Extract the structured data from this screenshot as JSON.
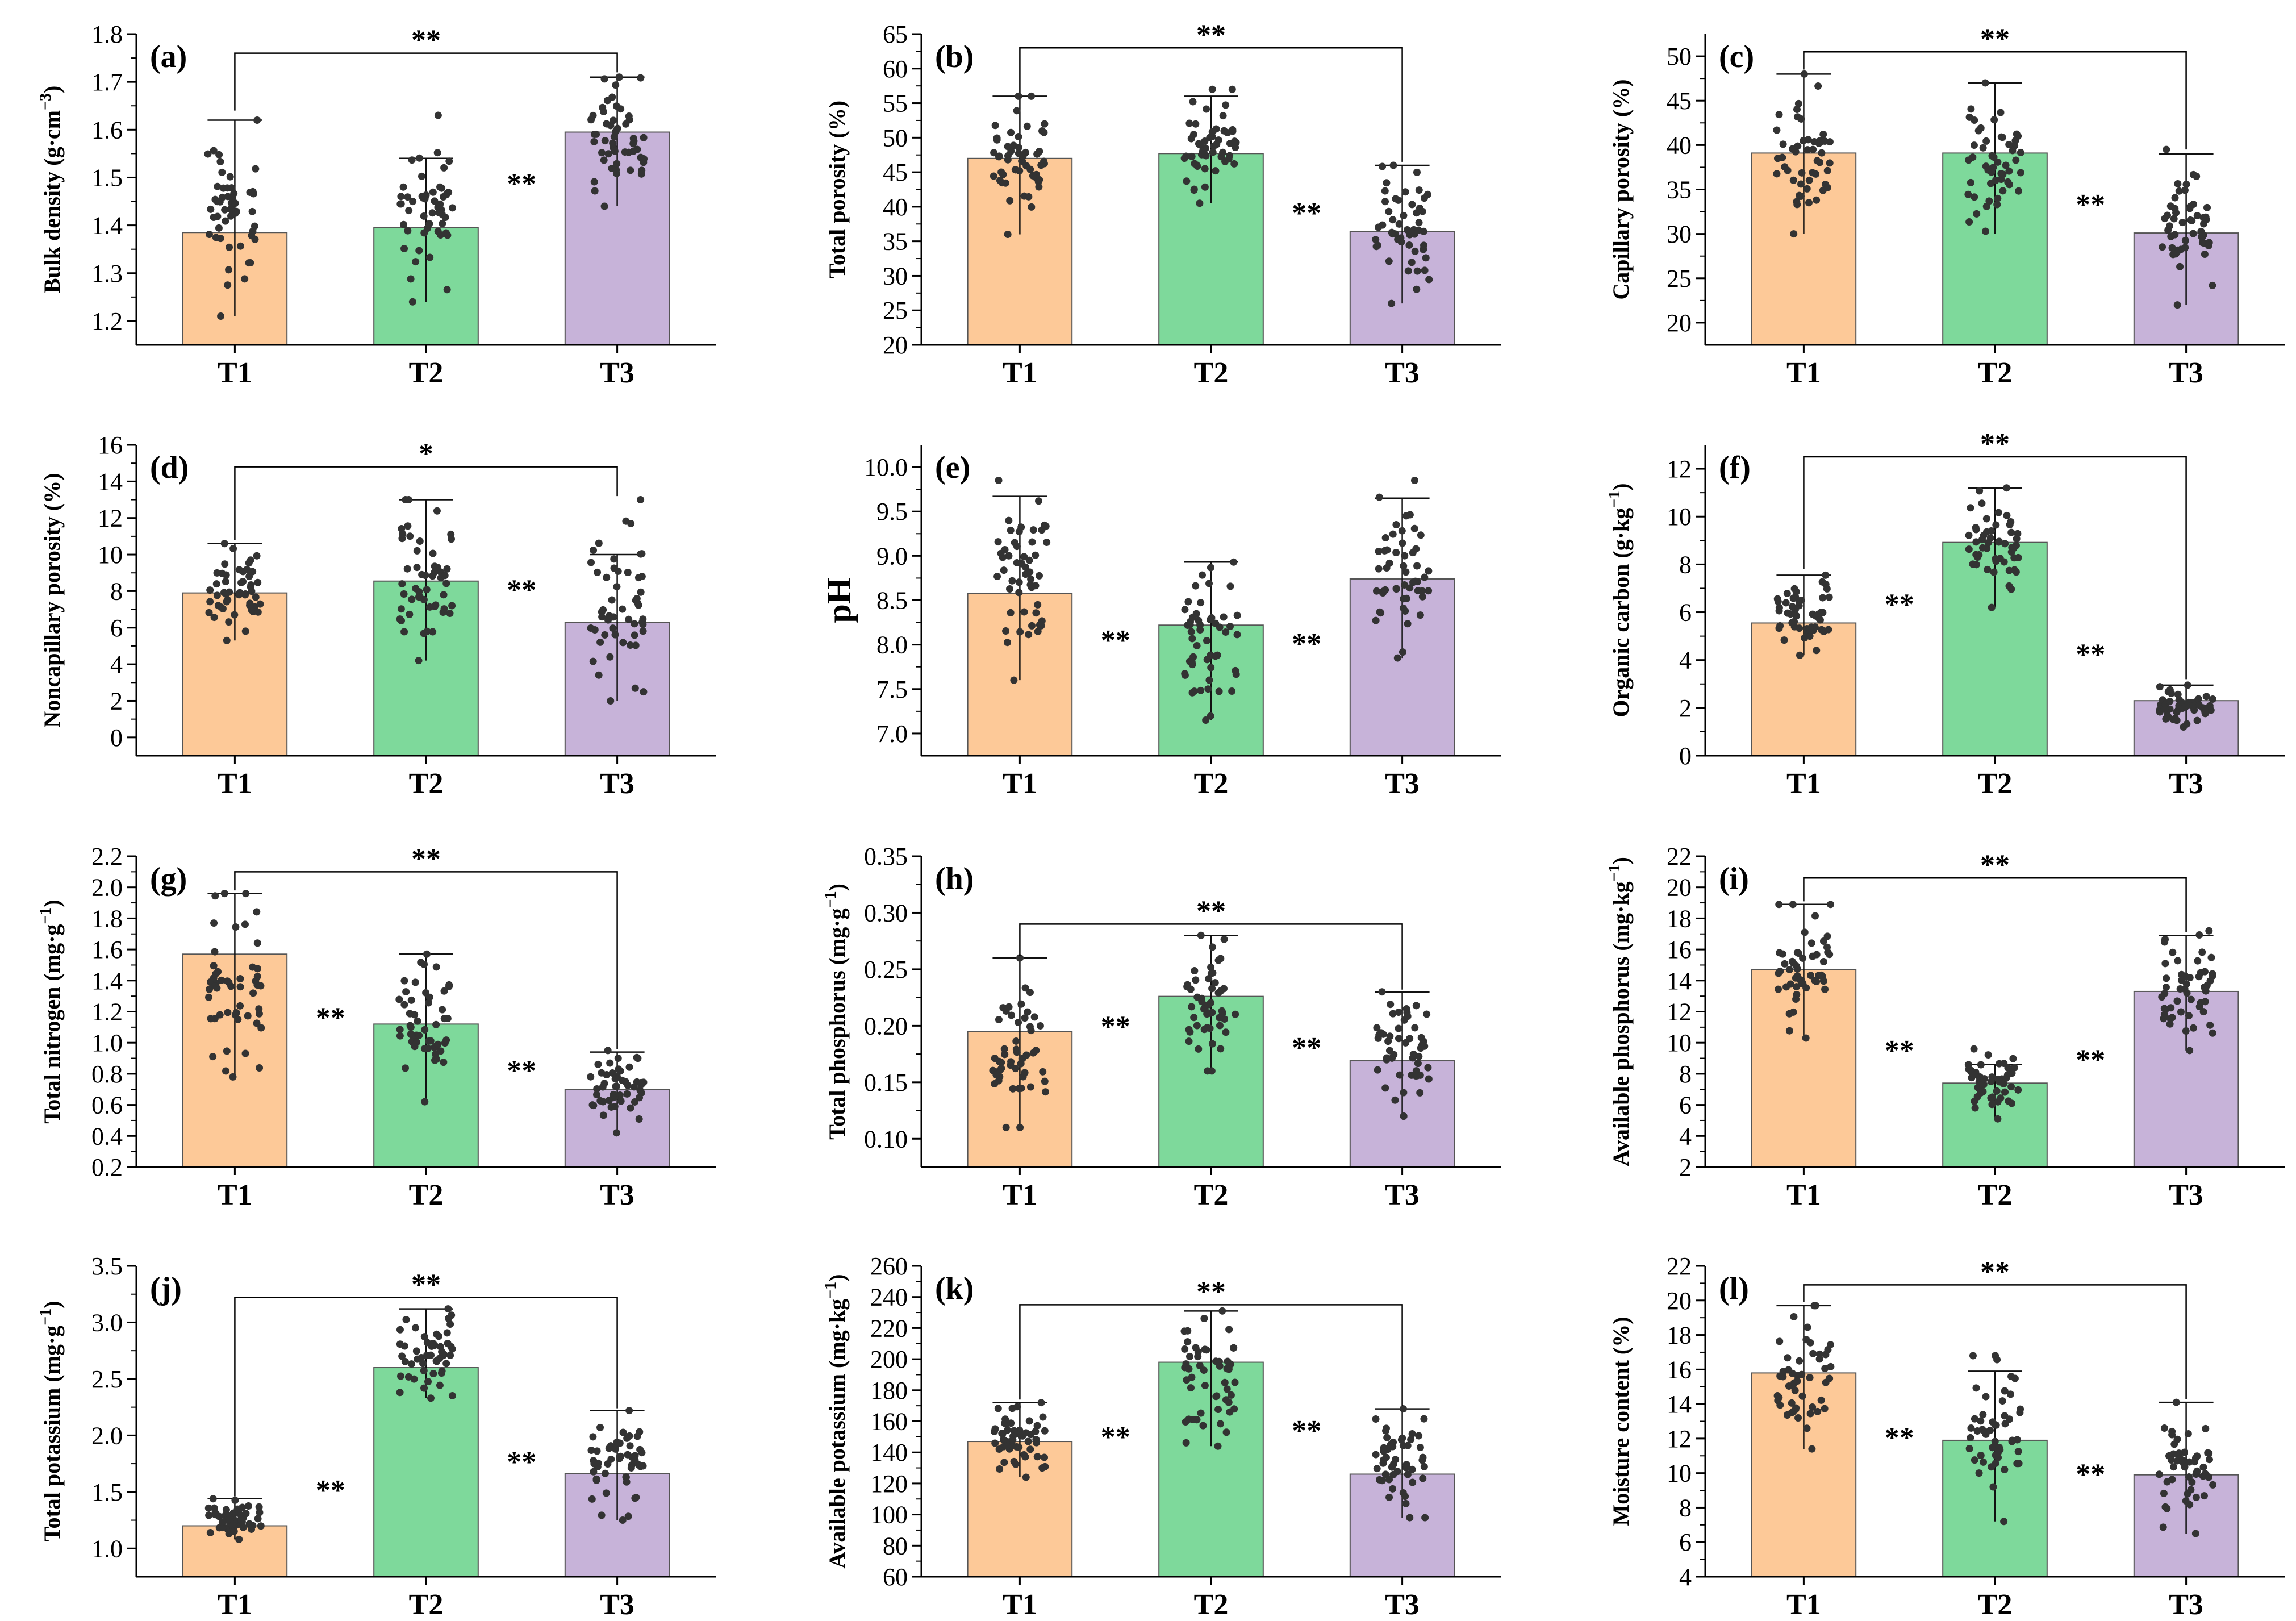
{
  "colors": {
    "T1": "#fdc998",
    "T2": "#7ed99b",
    "T3": "#c7b3d9",
    "point": "#333333",
    "axis": "#000000"
  },
  "categories": [
    "T1",
    "T2",
    "T3"
  ],
  "chart_data": [
    {
      "type": "bar",
      "panel": "(a)",
      "ylabel_parts": [
        "Bulk density (g·cm",
        "−3",
        ")"
      ],
      "categories": [
        "T1",
        "T2",
        "T3"
      ],
      "values": [
        1.385,
        1.395,
        1.595
      ],
      "err_low": [
        1.21,
        1.24,
        1.44
      ],
      "err_high": [
        1.62,
        1.54,
        1.71
      ],
      "pt_range": [
        [
          1.21,
          1.62
        ],
        [
          1.24,
          1.63
        ],
        [
          1.44,
          1.71
        ]
      ],
      "ylim": [
        1.15,
        1.8
      ],
      "yticks": [
        1.2,
        1.3,
        1.4,
        1.5,
        1.6,
        1.7,
        1.8
      ],
      "tick_format": "1",
      "bracket": {
        "from": 0,
        "to": 2,
        "y": 1.76,
        "drop": [
          1.64,
          1.72
        ],
        "label": "**"
      },
      "sig": [
        {
          "between": [
            1,
            2
          ],
          "y": 1.5,
          "label": "**"
        }
      ]
    },
    {
      "type": "bar",
      "panel": "(b)",
      "ylabel_parts": [
        "Total porosity (%)"
      ],
      "categories": [
        "T1",
        "T2",
        "T3"
      ],
      "values": [
        47,
        47.7,
        36.4
      ],
      "err_low": [
        36,
        40.5,
        26
      ],
      "err_high": [
        56,
        56,
        46
      ],
      "pt_range": [
        [
          36,
          56
        ],
        [
          40.5,
          57
        ],
        [
          26,
          46
        ]
      ],
      "ylim": [
        20,
        65
      ],
      "yticks": [
        20,
        25,
        30,
        35,
        40,
        45,
        50,
        55,
        60,
        65
      ],
      "tick_format": "0",
      "bracket": {
        "from": 0,
        "to": 2,
        "y": 63,
        "drop": [
          56.5,
          46.5
        ],
        "label": "**"
      },
      "sig": [
        {
          "between": [
            1,
            2
          ],
          "y": 40,
          "label": "**"
        }
      ]
    },
    {
      "type": "bar",
      "panel": "(c)",
      "ylabel_parts": [
        "Capillary porosity (%)"
      ],
      "categories": [
        "T1",
        "T2",
        "T3"
      ],
      "values": [
        39.1,
        39.1,
        30.1
      ],
      "err_low": [
        30,
        30,
        22
      ],
      "err_high": [
        48,
        47,
        39
      ],
      "pt_range": [
        [
          30,
          48
        ],
        [
          30.3,
          47
        ],
        [
          22,
          39.5
        ]
      ],
      "ylim": [
        17.5,
        52.5
      ],
      "yticks": [
        20,
        25,
        30,
        35,
        40,
        45,
        50
      ],
      "tick_format": "0",
      "bracket": {
        "from": 0,
        "to": 2,
        "y": 50.5,
        "drop": [
          48.5,
          39.5
        ],
        "label": "**"
      },
      "sig": [
        {
          "between": [
            1,
            2
          ],
          "y": 34,
          "label": "**"
        }
      ]
    },
    {
      "type": "bar",
      "panel": "(d)",
      "ylabel_parts": [
        "Noncapillary porosity (%)"
      ],
      "categories": [
        "T1",
        "T2",
        "T3"
      ],
      "values": [
        7.9,
        8.55,
        6.3
      ],
      "err_low": [
        5.3,
        4.2,
        2
      ],
      "err_high": [
        10.6,
        13,
        10
      ],
      "pt_range": [
        [
          5.3,
          10.6
        ],
        [
          4.2,
          13
        ],
        [
          2,
          13
        ]
      ],
      "ylim": [
        -1,
        16
      ],
      "yticks": [
        0,
        2,
        4,
        6,
        8,
        10,
        12,
        14,
        16
      ],
      "tick_format": "0",
      "bracket": {
        "from": 0,
        "to": 2,
        "y": 14.8,
        "drop": [
          10.8,
          13.2
        ],
        "label": "*"
      },
      "sig": [
        {
          "between": [
            1,
            2
          ],
          "y": 8.4,
          "label": "**"
        }
      ]
    },
    {
      "type": "bar",
      "panel": "(e)",
      "ylabel_parts": [
        "pH"
      ],
      "categories": [
        "T1",
        "T2",
        "T3"
      ],
      "values": [
        8.58,
        8.22,
        8.74
      ],
      "err_low": [
        7.6,
        7.15,
        7.85
      ],
      "err_high": [
        9.67,
        8.93,
        9.65
      ],
      "pt_range": [
        [
          7.6,
          9.85
        ],
        [
          7.15,
          8.93
        ],
        [
          7.85,
          9.85
        ]
      ],
      "ylim": [
        6.75,
        10.25
      ],
      "yticks": [
        7.0,
        7.5,
        8.0,
        8.5,
        9.0,
        9.5,
        10.0
      ],
      "tick_format": "1",
      "bracket": null,
      "sig": [
        {
          "between": [
            0,
            1
          ],
          "y": 8.12,
          "label": "**"
        },
        {
          "between": [
            1,
            2
          ],
          "y": 8.08,
          "label": "**"
        }
      ]
    },
    {
      "type": "bar",
      "panel": "(f)",
      "ylabel_parts": [
        "Organic carbon (g·kg",
        "−1",
        ")"
      ],
      "categories": [
        "T1",
        "T2",
        "T3"
      ],
      "values": [
        5.55,
        8.92,
        2.3
      ],
      "err_low": [
        4.2,
        6.2,
        1.2
      ],
      "err_high": [
        7.55,
        11.2,
        2.95
      ],
      "pt_range": [
        [
          4.2,
          7.55
        ],
        [
          6.2,
          11.2
        ],
        [
          1.2,
          2.95
        ]
      ],
      "ylim": [
        0,
        13
      ],
      "yticks": [
        0,
        2,
        4,
        6,
        8,
        10,
        12
      ],
      "tick_format": "0",
      "bracket": {
        "from": 0,
        "to": 2,
        "y": 12.5,
        "drop": [
          7.8,
          3.2
        ],
        "label": "**"
      },
      "sig": [
        {
          "between": [
            0,
            1
          ],
          "y": 6.6,
          "label": "**"
        },
        {
          "between": [
            1,
            2
          ],
          "y": 4.5,
          "label": "**"
        }
      ]
    },
    {
      "type": "bar",
      "panel": "(g)",
      "ylabel_parts": [
        "Total nitrogen (mg·g",
        "−1",
        ")"
      ],
      "categories": [
        "T1",
        "T2",
        "T3"
      ],
      "values": [
        1.57,
        1.12,
        0.7
      ],
      "err_low": [
        0.78,
        0.62,
        0.42
      ],
      "err_high": [
        1.96,
        1.57,
        0.94
      ],
      "pt_range": [
        [
          0.78,
          1.96
        ],
        [
          0.62,
          1.57
        ],
        [
          0.42,
          0.95
        ]
      ],
      "ylim": [
        0.2,
        2.2
      ],
      "yticks": [
        0.2,
        0.4,
        0.6,
        0.8,
        1.0,
        1.2,
        1.4,
        1.6,
        1.8,
        2.0,
        2.2
      ],
      "tick_format": "1",
      "bracket": {
        "from": 0,
        "to": 2,
        "y": 2.1,
        "drop": [
          1.98,
          0.96
        ],
        "label": "**"
      },
      "sig": [
        {
          "between": [
            0,
            1
          ],
          "y": 1.2,
          "label": "**"
        },
        {
          "between": [
            1,
            2
          ],
          "y": 0.86,
          "label": "**"
        }
      ]
    },
    {
      "type": "bar",
      "panel": "(h)",
      "ylabel_parts": [
        "Total phosphorus (mg·g",
        "−1",
        ")"
      ],
      "categories": [
        "T1",
        "T2",
        "T3"
      ],
      "values": [
        0.195,
        0.226,
        0.169
      ],
      "err_low": [
        0.11,
        0.16,
        0.12
      ],
      "err_high": [
        0.26,
        0.28,
        0.23
      ],
      "pt_range": [
        [
          0.11,
          0.26
        ],
        [
          0.16,
          0.28
        ],
        [
          0.12,
          0.23
        ]
      ],
      "ylim": [
        0.075,
        0.35
      ],
      "yticks": [
        0.1,
        0.15,
        0.2,
        0.25,
        0.3,
        0.35
      ],
      "tick_format": "2",
      "bracket": {
        "from": 0,
        "to": 2,
        "y": 0.29,
        "drop": [
          0.262,
          0.232
        ],
        "label": "**"
      },
      "sig": [
        {
          "between": [
            0,
            1
          ],
          "y": 0.205,
          "label": "**"
        },
        {
          "between": [
            1,
            2
          ],
          "y": 0.186,
          "label": "**"
        }
      ]
    },
    {
      "type": "bar",
      "panel": "(i)",
      "ylabel_parts": [
        "Available phosphorus (mg·kg",
        "−1",
        ")"
      ],
      "categories": [
        "T1",
        "T2",
        "T3"
      ],
      "values": [
        14.7,
        7.4,
        13.3
      ],
      "err_low": [
        10.3,
        5.1,
        9.5
      ],
      "err_high": [
        18.9,
        8.6,
        16.9
      ],
      "pt_range": [
        [
          10.3,
          18.9
        ],
        [
          5.1,
          9.6
        ],
        [
          9.5,
          17.2
        ]
      ],
      "ylim": [
        2,
        22
      ],
      "yticks": [
        2,
        4,
        6,
        8,
        10,
        12,
        14,
        16,
        18,
        20,
        22
      ],
      "tick_format": "0",
      "bracket": {
        "from": 0,
        "to": 2,
        "y": 20.6,
        "drop": [
          19.1,
          17.1
        ],
        "label": "**"
      },
      "sig": [
        {
          "between": [
            0,
            1
          ],
          "y": 9.9,
          "label": "**"
        },
        {
          "between": [
            1,
            2
          ],
          "y": 9.3,
          "label": "**"
        }
      ]
    },
    {
      "type": "bar",
      "panel": "(j)",
      "ylabel_parts": [
        "Total potassium (mg·g",
        "−1",
        ")"
      ],
      "categories": [
        "T1",
        "T2",
        "T3"
      ],
      "values": [
        1.2,
        2.6,
        1.66
      ],
      "err_low": [
        1.08,
        2.33,
        1.25
      ],
      "err_high": [
        1.44,
        3.12,
        2.22
      ],
      "pt_range": [
        [
          1.08,
          1.44
        ],
        [
          2.33,
          3.12
        ],
        [
          1.25,
          2.22
        ]
      ],
      "ylim": [
        0.75,
        3.5
      ],
      "yticks": [
        1.0,
        1.5,
        2.0,
        2.5,
        3.0,
        3.5
      ],
      "tick_format": "1",
      "bracket": {
        "from": 0,
        "to": 2,
        "y": 3.22,
        "drop": [
          1.46,
          2.24
        ],
        "label": "**"
      },
      "sig": [
        {
          "between": [
            0,
            1
          ],
          "y": 1.57,
          "label": "**"
        },
        {
          "between": [
            1,
            2
          ],
          "y": 1.82,
          "label": "**"
        }
      ]
    },
    {
      "type": "bar",
      "panel": "(k)",
      "ylabel_parts": [
        "Available potassium (mg·kg",
        "−1",
        ")"
      ],
      "categories": [
        "T1",
        "T2",
        "T3"
      ],
      "values": [
        147,
        198,
        126
      ],
      "err_low": [
        124,
        144,
        98
      ],
      "err_high": [
        172,
        231,
        168
      ],
      "pt_range": [
        [
          124,
          172
        ],
        [
          144,
          231
        ],
        [
          98,
          168
        ]
      ],
      "ylim": [
        60,
        260
      ],
      "yticks": [
        60,
        80,
        100,
        120,
        140,
        160,
        180,
        200,
        220,
        240,
        260
      ],
      "tick_format": "0",
      "bracket": {
        "from": 0,
        "to": 2,
        "y": 235,
        "drop": [
          174,
          170
        ],
        "label": "**"
      },
      "sig": [
        {
          "between": [
            0,
            1
          ],
          "y": 154,
          "label": "**"
        },
        {
          "between": [
            1,
            2
          ],
          "y": 158,
          "label": "**"
        }
      ]
    },
    {
      "type": "bar",
      "panel": "(l)",
      "ylabel_parts": [
        "Moisture content (%)"
      ],
      "categories": [
        "T1",
        "T2",
        "T3"
      ],
      "values": [
        15.8,
        11.9,
        9.9
      ],
      "err_low": [
        11.4,
        7.2,
        6.5
      ],
      "err_high": [
        19.7,
        15.9,
        14.1
      ],
      "pt_range": [
        [
          11.4,
          19.7
        ],
        [
          7.2,
          16.8
        ],
        [
          6.5,
          14.1
        ]
      ],
      "ylim": [
        4,
        22
      ],
      "yticks": [
        4,
        6,
        8,
        10,
        12,
        14,
        16,
        18,
        20,
        22
      ],
      "tick_format": "0",
      "bracket": {
        "from": 0,
        "to": 2,
        "y": 20.9,
        "drop": [
          19.9,
          14.3
        ],
        "label": "**"
      },
      "sig": [
        {
          "between": [
            0,
            1
          ],
          "y": 12.4,
          "label": "**"
        },
        {
          "between": [
            1,
            2
          ],
          "y": 10.3,
          "label": "**"
        }
      ]
    }
  ]
}
